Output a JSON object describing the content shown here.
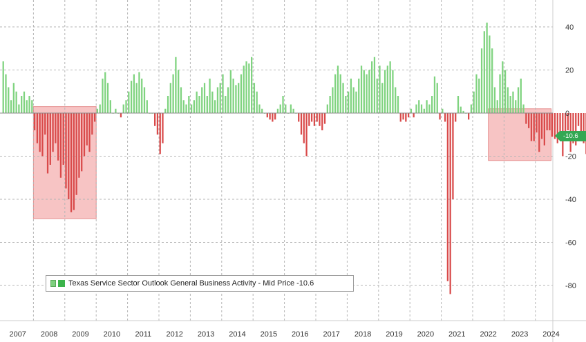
{
  "colors": {
    "positive_bar": "#7fd37f",
    "negative_bar": "#d94a4a",
    "highlight": "#f4b0b0",
    "grid": "#b5b5b5",
    "axis_text": "#333333",
    "price_tag": "#34a853"
  },
  "legend": {
    "label": "Texas Service Sector Outlook General Business Activity - Mid Price -10.6"
  },
  "price_tag": {
    "value": "-10.6"
  },
  "chart_data": {
    "type": "bar",
    "title": "",
    "xlabel": "",
    "ylabel": "",
    "ylim": [
      -92,
      54
    ],
    "y_ticks": [
      40,
      20,
      0,
      -20,
      -40,
      -60,
      -80
    ],
    "x_labels": [
      "2007",
      "2008",
      "2009",
      "2010",
      "2011",
      "2012",
      "2013",
      "2014",
      "2015",
      "2016",
      "2017",
      "2018",
      "2019",
      "2020",
      "2021",
      "2022",
      "2023",
      "2024"
    ],
    "grid": true,
    "legend_position": "bottom-left",
    "highlighted_periods": [
      {
        "start": "2008-01",
        "end": "2009-12",
        "ymin": -49,
        "ymax": 3
      },
      {
        "start": "2022-07",
        "end": "2024-06",
        "ymin": -22,
        "ymax": 2
      }
    ],
    "series": [
      {
        "name": "Texas Service Sector Outlook General Business Activity - Mid Price",
        "start": "2007-01",
        "frequency": "monthly",
        "last_value": -10.6,
        "values": [
          24,
          18,
          12,
          6,
          14,
          10,
          4,
          8,
          10,
          6,
          8,
          6,
          -8,
          -14,
          -18,
          -20,
          -10,
          -28,
          -24,
          -18,
          -14,
          -22,
          -30,
          -24,
          -35,
          -40,
          -46,
          -45,
          -38,
          -30,
          -27,
          -20,
          -15,
          -18,
          -10,
          -4,
          2,
          4,
          16,
          19,
          14,
          6,
          0,
          2,
          0,
          -2,
          4,
          6,
          10,
          15,
          18,
          14,
          19,
          16,
          12,
          6,
          0,
          0,
          -6,
          -10,
          -19,
          -14,
          2,
          8,
          14,
          18,
          26,
          20,
          12,
          6,
          4,
          8,
          4,
          6,
          10,
          8,
          12,
          14,
          8,
          16,
          10,
          6,
          12,
          14,
          18,
          8,
          12,
          20,
          16,
          13,
          14,
          18,
          22,
          24,
          23,
          26,
          14,
          10,
          4,
          2,
          0,
          -2,
          -3,
          -4,
          -3,
          2,
          4,
          8,
          4,
          0,
          4,
          2,
          0,
          -4,
          -10,
          -14,
          -20,
          -6,
          -4,
          -6,
          -4,
          -6,
          -8,
          -5,
          4,
          8,
          12,
          18,
          22,
          18,
          14,
          8,
          10,
          16,
          12,
          10,
          16,
          22,
          20,
          18,
          20,
          24,
          26,
          16,
          22,
          14,
          20,
          22,
          24,
          20,
          12,
          8,
          -4,
          -3,
          -4,
          -2,
          2,
          -2,
          4,
          6,
          4,
          2,
          6,
          4,
          8,
          17,
          14,
          -3,
          2,
          -4,
          -78,
          -84,
          -40,
          -4,
          8,
          3,
          1,
          0,
          -3,
          4,
          10,
          18,
          16,
          30,
          38,
          42,
          36,
          30,
          12,
          6,
          18,
          24,
          20,
          12,
          8,
          10,
          6,
          12,
          16,
          4,
          -5,
          -7,
          -13,
          -13,
          -9,
          -18,
          -12,
          -15,
          -8,
          -8,
          -11,
          -12,
          -14,
          -10,
          -20,
          -12,
          -8,
          -18,
          -14,
          -15,
          -6,
          -9,
          -14,
          -19,
          -10,
          -6,
          -15,
          -8,
          -12,
          -9,
          -16,
          -10,
          -6,
          -12,
          -11,
          -10.6
        ]
      }
    ]
  }
}
